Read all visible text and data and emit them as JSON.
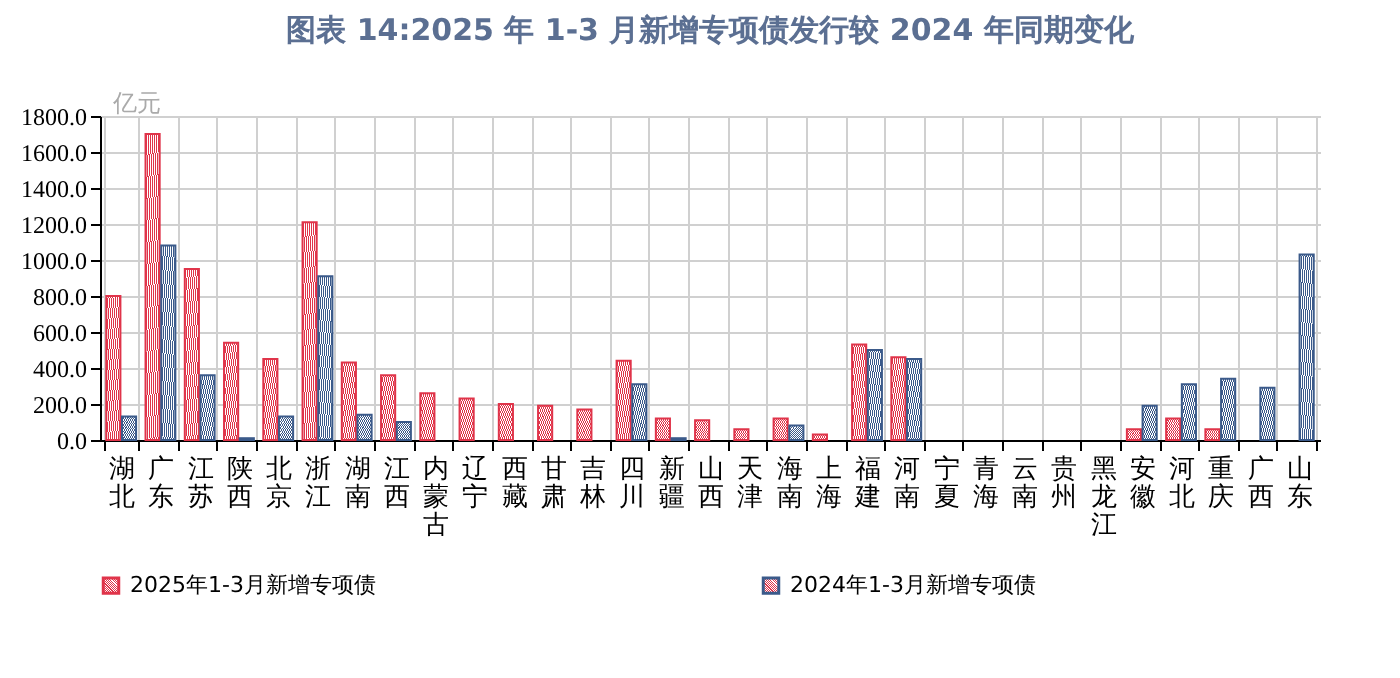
{
  "chart_data": {
    "type": "bar",
    "title": "图表 14:2025 年 1-3 月新增专项债发行较 2024 年同期变化",
    "ylabel": "亿元",
    "categories": [
      "湖北",
      "广东",
      "江苏",
      "陕西",
      "北京",
      "浙江",
      "湖南",
      "江西",
      "内蒙古",
      "辽宁",
      "西藏",
      "甘肃",
      "吉林",
      "四川",
      "新疆",
      "山西",
      "天津",
      "海南",
      "上海",
      "福建",
      "河南",
      "宁夏",
      "青海",
      "云南",
      "贵州",
      "黑龙江",
      "安徽",
      "河北",
      "重庆",
      "广西",
      "山东"
    ],
    "series": [
      {
        "name": "2025年1-3月新增专项债",
        "color": "#e0344a",
        "values": [
          800,
          1700,
          950,
          540,
          450,
          1210,
          430,
          360,
          260,
          230,
          200,
          190,
          170,
          440,
          120,
          110,
          60,
          120,
          30,
          530,
          460,
          null,
          null,
          null,
          null,
          null,
          60,
          120,
          60,
          null,
          null
        ]
      },
      {
        "name": "2024年1-3月新增专项债",
        "color": "#3b5a8a",
        "values": [
          130,
          1080,
          360,
          10,
          130,
          910,
          140,
          100,
          null,
          null,
          null,
          null,
          null,
          310,
          10,
          null,
          null,
          80,
          null,
          500,
          450,
          null,
          null,
          null,
          null,
          null,
          190,
          310,
          340,
          290,
          1030
        ]
      }
    ],
    "ylim": [
      0,
      1800
    ],
    "yticks": [
      {
        "value": 0,
        "label": "0.0"
      },
      {
        "value": 200,
        "label": "200.0"
      },
      {
        "value": 400,
        "label": "400.0"
      },
      {
        "value": 600,
        "label": "600.0"
      },
      {
        "value": 800,
        "label": "800.0"
      },
      {
        "value": 1000,
        "label": "1000.0"
      },
      {
        "value": 1200,
        "label": "1200.0"
      },
      {
        "value": 1400,
        "label": "1400.0"
      },
      {
        "value": 1600,
        "label": "1600.0"
      },
      {
        "value": 1800,
        "label": "1800.0"
      }
    ],
    "grid": true,
    "legend": "bottom"
  }
}
